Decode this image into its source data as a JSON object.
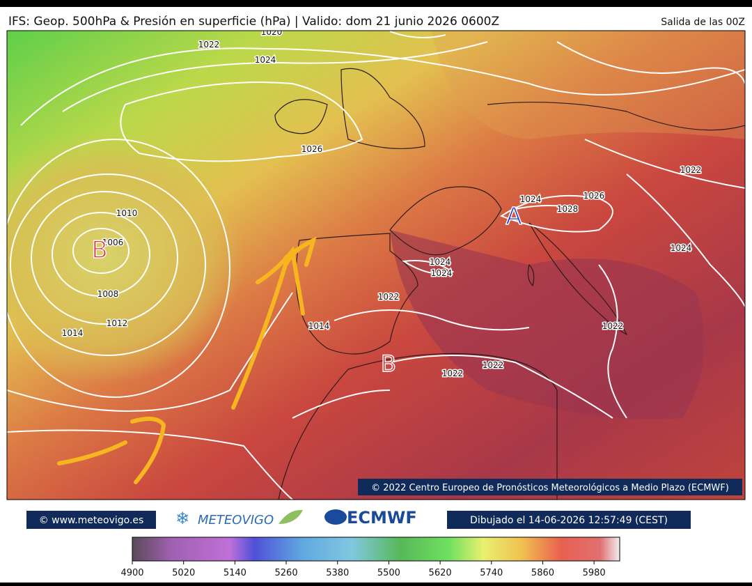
{
  "header": {
    "title": "IFS: Geop. 500hPa & Presión en superficie (hPa) | Valido: dom 21 junio 2026 0600Z",
    "run": "Salida de las 00Z"
  },
  "map": {
    "isobar_labels": [
      "1020",
      "1022",
      "1024",
      "1026",
      "1010",
      "1006",
      "1008",
      "1012",
      "1014",
      "1022",
      "1014",
      "1024",
      "1024",
      "1024",
      "1026",
      "1028",
      "1022",
      "1024",
      "1022",
      "1022",
      "1022"
    ],
    "pressure_centers": [
      "B",
      "A",
      "B"
    ],
    "copyright": "© 2022 Centro Europeo de Pronósticos Meteorológicos a Medio Plazo (ECMWF)"
  },
  "footer": {
    "site": "© www.meteovigo.es",
    "logo_meteovigo": "METEOVIGO",
    "logo_ecmwf": "ECMWF",
    "drawn": "Dibujado el 14-06-2026 12:57:49 (CEST)"
  },
  "colorbar": {
    "range": [
      4900,
      6040
    ],
    "ticks": [
      4900,
      5020,
      5140,
      5260,
      5380,
      5500,
      5620,
      5740,
      5860,
      5980
    ]
  }
}
